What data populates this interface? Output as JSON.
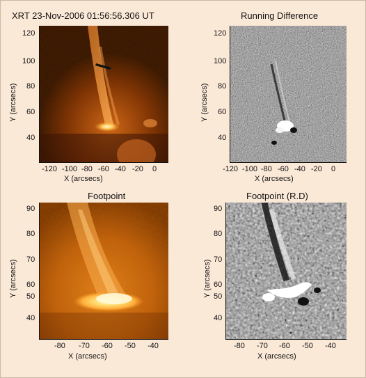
{
  "panels": [
    {
      "id": "xrt",
      "title": "XRT 23-Nov-2006 01:56:56.306 UT",
      "xlabel": "X (arcsecs)",
      "ylabel": "Y (arcsecs)",
      "xticks": [
        "-120",
        "-100",
        "-80",
        "-60",
        "-40",
        "-20",
        "0"
      ],
      "yticks": [
        "120",
        "100",
        "80",
        "60",
        "40"
      ],
      "colormap": "orange"
    },
    {
      "id": "running-difference",
      "title": "Running Difference",
      "xlabel": "X (arcsecs)",
      "ylabel": "Y (arcsecs)",
      "xticks": [
        "-120",
        "-100",
        "-80",
        "-60",
        "-40",
        "-20",
        "0"
      ],
      "yticks": [
        "120",
        "100",
        "80",
        "60",
        "40"
      ],
      "colormap": "gray"
    },
    {
      "id": "footpoint",
      "title": "Footpoint",
      "xlabel": "X (arcsecs)",
      "ylabel": "Y (arcsecs)",
      "xticks": [
        "-80",
        "-70",
        "-60",
        "-50",
        "-40"
      ],
      "yticks": [
        "90",
        "80",
        "70",
        "60",
        "50",
        "40"
      ],
      "colormap": "orange"
    },
    {
      "id": "footpoint-rd",
      "title": "Footpoint (R.D)",
      "xlabel": "X (arcsecs)",
      "ylabel": "Y (arcsecs)",
      "xticks": [
        "-80",
        "-70",
        "-60",
        "-50",
        "-40"
      ],
      "yticks": [
        "90",
        "80",
        "70",
        "60",
        "50",
        "40"
      ],
      "colormap": "gray"
    }
  ]
}
